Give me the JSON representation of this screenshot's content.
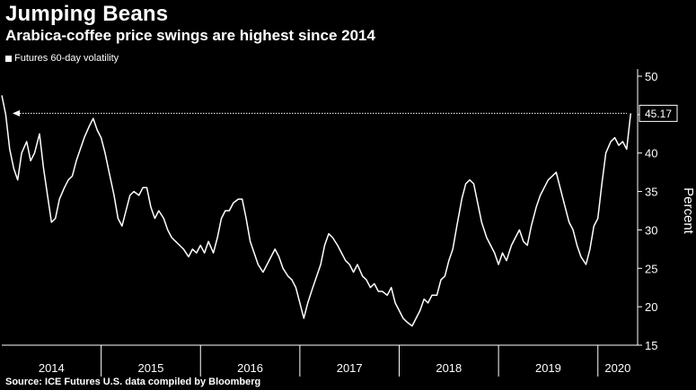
{
  "chart_data": {
    "type": "line",
    "title": "Jumping Beans",
    "subtitle": "Arabica-coffee price swings are highest since 2014",
    "series": [
      {
        "name": "Futures 60-day volatility",
        "color": "#ffffff",
        "points": [
          [
            2014.0,
            47.5
          ],
          [
            2014.04,
            45.0
          ],
          [
            2014.08,
            40.5
          ],
          [
            2014.12,
            38.0
          ],
          [
            2014.16,
            36.5
          ],
          [
            2014.2,
            40.0
          ],
          [
            2014.25,
            41.5
          ],
          [
            2014.29,
            39.0
          ],
          [
            2014.33,
            40.0
          ],
          [
            2014.38,
            42.5
          ],
          [
            2014.42,
            38.0
          ],
          [
            2014.46,
            34.5
          ],
          [
            2014.5,
            31.0
          ],
          [
            2014.54,
            31.5
          ],
          [
            2014.58,
            34.0
          ],
          [
            2014.63,
            35.5
          ],
          [
            2014.67,
            36.5
          ],
          [
            2014.71,
            37.0
          ],
          [
            2014.75,
            39.0
          ],
          [
            2014.79,
            40.5
          ],
          [
            2014.83,
            42.0
          ],
          [
            2014.88,
            43.5
          ],
          [
            2014.92,
            44.5
          ],
          [
            2014.96,
            43.0
          ],
          [
            2015.0,
            42.0
          ],
          [
            2015.04,
            40.0
          ],
          [
            2015.08,
            37.5
          ],
          [
            2015.13,
            34.5
          ],
          [
            2015.17,
            31.5
          ],
          [
            2015.21,
            30.5
          ],
          [
            2015.25,
            32.5
          ],
          [
            2015.29,
            34.5
          ],
          [
            2015.33,
            35.0
          ],
          [
            2015.38,
            34.5
          ],
          [
            2015.42,
            35.5
          ],
          [
            2015.46,
            35.5
          ],
          [
            2015.5,
            33.0
          ],
          [
            2015.54,
            31.5
          ],
          [
            2015.58,
            32.5
          ],
          [
            2015.63,
            31.5
          ],
          [
            2015.67,
            30.0
          ],
          [
            2015.71,
            29.0
          ],
          [
            2015.75,
            28.5
          ],
          [
            2015.79,
            28.0
          ],
          [
            2015.83,
            27.5
          ],
          [
            2015.88,
            26.5
          ],
          [
            2015.92,
            27.5
          ],
          [
            2015.96,
            27.0
          ],
          [
            2016.0,
            28.0
          ],
          [
            2016.04,
            27.0
          ],
          [
            2016.08,
            28.5
          ],
          [
            2016.13,
            27.0
          ],
          [
            2016.17,
            29.0
          ],
          [
            2016.21,
            31.5
          ],
          [
            2016.25,
            32.5
          ],
          [
            2016.29,
            32.5
          ],
          [
            2016.33,
            33.5
          ],
          [
            2016.38,
            34.0
          ],
          [
            2016.42,
            34.0
          ],
          [
            2016.46,
            31.5
          ],
          [
            2016.5,
            28.5
          ],
          [
            2016.54,
            27.0
          ],
          [
            2016.58,
            25.5
          ],
          [
            2016.63,
            24.5
          ],
          [
            2016.67,
            25.5
          ],
          [
            2016.71,
            26.5
          ],
          [
            2016.75,
            27.5
          ],
          [
            2016.79,
            26.5
          ],
          [
            2016.83,
            25.0
          ],
          [
            2016.88,
            24.0
          ],
          [
            2016.92,
            23.5
          ],
          [
            2016.96,
            22.5
          ],
          [
            2017.0,
            20.5
          ],
          [
            2017.04,
            18.5
          ],
          [
            2017.08,
            20.5
          ],
          [
            2017.13,
            22.5
          ],
          [
            2017.17,
            24.0
          ],
          [
            2017.21,
            25.5
          ],
          [
            2017.25,
            28.0
          ],
          [
            2017.29,
            29.5
          ],
          [
            2017.33,
            29.0
          ],
          [
            2017.38,
            28.0
          ],
          [
            2017.42,
            27.0
          ],
          [
            2017.46,
            26.0
          ],
          [
            2017.5,
            25.5
          ],
          [
            2017.54,
            24.5
          ],
          [
            2017.58,
            25.5
          ],
          [
            2017.63,
            24.0
          ],
          [
            2017.67,
            23.5
          ],
          [
            2017.71,
            22.5
          ],
          [
            2017.75,
            23.0
          ],
          [
            2017.79,
            22.0
          ],
          [
            2017.83,
            22.0
          ],
          [
            2017.88,
            21.5
          ],
          [
            2017.92,
            22.5
          ],
          [
            2017.96,
            20.5
          ],
          [
            2018.0,
            19.5
          ],
          [
            2018.04,
            18.5
          ],
          [
            2018.08,
            18.0
          ],
          [
            2018.13,
            17.5
          ],
          [
            2018.17,
            18.5
          ],
          [
            2018.21,
            19.5
          ],
          [
            2018.25,
            21.0
          ],
          [
            2018.29,
            20.5
          ],
          [
            2018.33,
            21.5
          ],
          [
            2018.38,
            21.5
          ],
          [
            2018.42,
            23.5
          ],
          [
            2018.46,
            24.0
          ],
          [
            2018.5,
            26.0
          ],
          [
            2018.54,
            27.5
          ],
          [
            2018.58,
            30.5
          ],
          [
            2018.63,
            34.0
          ],
          [
            2018.67,
            36.0
          ],
          [
            2018.71,
            36.5
          ],
          [
            2018.75,
            36.0
          ],
          [
            2018.79,
            33.5
          ],
          [
            2018.83,
            31.0
          ],
          [
            2018.88,
            29.0
          ],
          [
            2018.92,
            28.0
          ],
          [
            2018.96,
            27.0
          ],
          [
            2019.0,
            25.5
          ],
          [
            2019.04,
            27.0
          ],
          [
            2019.08,
            26.0
          ],
          [
            2019.13,
            28.0
          ],
          [
            2019.17,
            29.0
          ],
          [
            2019.21,
            30.0
          ],
          [
            2019.25,
            28.5
          ],
          [
            2019.29,
            28.0
          ],
          [
            2019.33,
            30.5
          ],
          [
            2019.38,
            33.0
          ],
          [
            2019.42,
            34.5
          ],
          [
            2019.46,
            35.5
          ],
          [
            2019.5,
            36.5
          ],
          [
            2019.54,
            37.0
          ],
          [
            2019.58,
            37.5
          ],
          [
            2019.63,
            35.0
          ],
          [
            2019.67,
            33.0
          ],
          [
            2019.71,
            31.0
          ],
          [
            2019.75,
            30.0
          ],
          [
            2019.79,
            28.0
          ],
          [
            2019.83,
            26.5
          ],
          [
            2019.88,
            25.5
          ],
          [
            2019.92,
            27.5
          ],
          [
            2019.96,
            30.5
          ],
          [
            2020.0,
            31.5
          ],
          [
            2020.04,
            36.0
          ],
          [
            2020.08,
            40.0
          ],
          [
            2020.13,
            41.5
          ],
          [
            2020.17,
            42.0
          ],
          [
            2020.21,
            41.0
          ],
          [
            2020.25,
            41.5
          ],
          [
            2020.29,
            40.5
          ],
          [
            2020.33,
            45.17
          ]
        ]
      }
    ],
    "callout": {
      "value": 45.17,
      "label": "45.17"
    },
    "xlim": [
      2014.0,
      2020.4
    ],
    "ylim": [
      15,
      50
    ],
    "y_ticks": [
      15,
      20,
      25,
      30,
      35,
      40,
      45,
      50
    ],
    "y_tick_labels": [
      "15",
      "20",
      "25",
      "30",
      "35",
      "40",
      "",
      "50"
    ],
    "x_year_labels": [
      {
        "label": "2014",
        "year": 2014
      },
      {
        "label": "2015",
        "year": 2015
      },
      {
        "label": "2016",
        "year": 2016
      },
      {
        "label": "2017",
        "year": 2017
      },
      {
        "label": "2018",
        "year": 2018
      },
      {
        "label": "2019",
        "year": 2019
      },
      {
        "label": "2020",
        "year": 2020
      }
    ],
    "ylabel": "Percent",
    "xlabel": "",
    "grid": false,
    "y_axis_position": "right",
    "legend_position": "top-left",
    "background_color": "#000000",
    "source": "Source: ICE Futures U.S. data compiled by Bloomberg"
  }
}
